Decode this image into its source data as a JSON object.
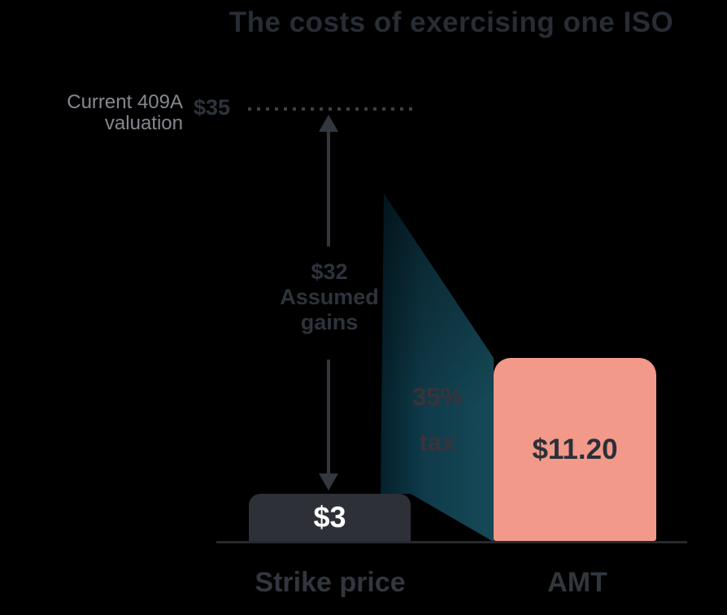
{
  "title": "The costs of exercising one ISO",
  "valuation": {
    "label_line1": "Current 409A",
    "label_line2": "valuation",
    "value": "$35"
  },
  "gains": {
    "value": "$32",
    "label_line1": "Assumed",
    "label_line2": "gains"
  },
  "tax": {
    "line1": "35%",
    "line2": "tax"
  },
  "bars": {
    "strike": {
      "value": "$3",
      "label": "Strike price"
    },
    "amt": {
      "value": "$11.20",
      "label": "AMT"
    }
  },
  "colors": {
    "background": "#000000",
    "title_text": "#282c34",
    "muted_label": "#85888e",
    "dark_text": "#2e333b",
    "arrow": "#33373e",
    "dotted_line_color": "#3c4046",
    "teal_funnel": "#164a58",
    "tax_text": "#3a3339",
    "strike_bar": "#2d3037",
    "strike_value_text": "#ffffff",
    "amt_bar": "#f2998a",
    "amt_value_text": "#2b3038",
    "axis_line": "#26292e",
    "category_label": "#32363d"
  },
  "chart_data": {
    "type": "bar",
    "title": "The costs of exercising one ISO",
    "categories": [
      "Strike price",
      "AMT"
    ],
    "values": [
      3,
      11.2
    ],
    "unit": "dollars per share",
    "annotations": [
      {
        "name": "Current 409A valuation",
        "value": 35,
        "label": "$35"
      },
      {
        "name": "Assumed gains",
        "value": 32,
        "label": "$32"
      },
      {
        "name": "AMT tax rate",
        "value": 35,
        "label": "35% tax"
      }
    ],
    "ylim": [
      0,
      35
    ],
    "grid": false,
    "legend": false
  }
}
